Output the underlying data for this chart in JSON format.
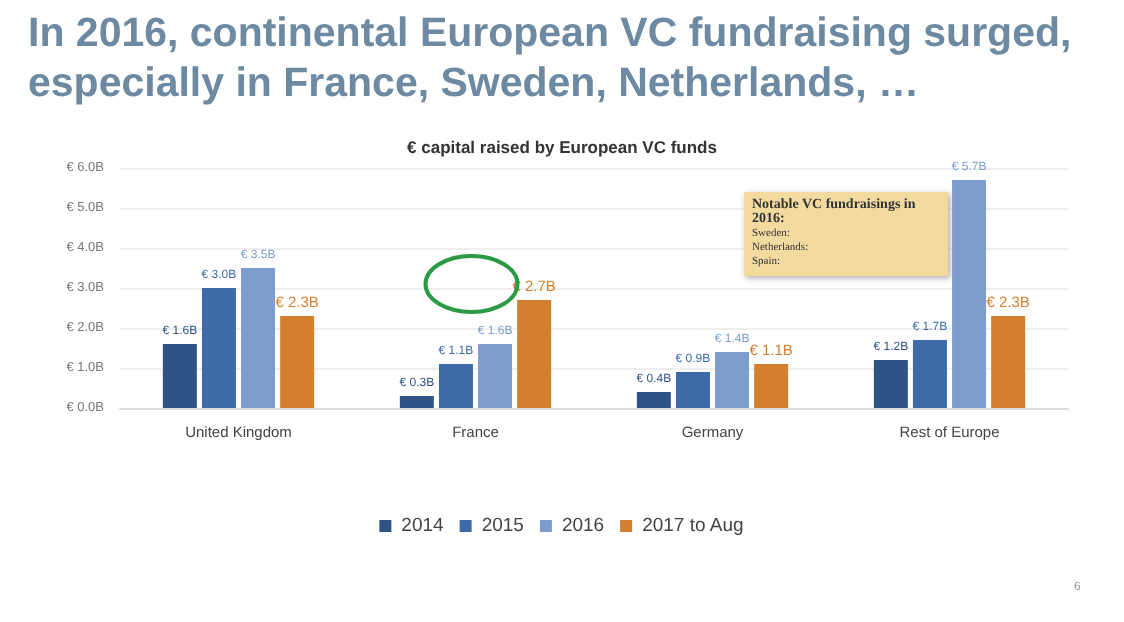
{
  "chart_data": {
    "type": "bar",
    "title": "In 2016, continental European VC fundraising surged, especially in France, Sweden, Netherlands, …",
    "subtitle": "€ capital raised by European VC funds",
    "categories": [
      "United Kingdom",
      "France",
      "Germany",
      "Rest of Europe"
    ],
    "series": [
      {
        "name": "2014",
        "color": "#2f5385",
        "values": [
          1.6,
          0.3,
          0.4,
          1.2
        ],
        "value_labels": [
          "€ 1.6B",
          "€ 0.3B",
          "€ 0.4B",
          "€ 1.2B"
        ]
      },
      {
        "name": "2015",
        "color": "#3d6aa8",
        "values": [
          3.0,
          1.1,
          0.9,
          1.7
        ],
        "value_labels": [
          "€ 3.0B",
          "€ 1.1B",
          "€ 0.9B",
          "€ 1.7B"
        ]
      },
      {
        "name": "2016",
        "color": "#7e9dcf",
        "values": [
          3.5,
          1.6,
          1.4,
          5.7
        ],
        "value_labels": [
          "€ 3.5B",
          "€ 1.6B",
          "€ 1.4B",
          "€ 5.7B"
        ]
      },
      {
        "name": "2017 to Aug",
        "color": "#d47f2e",
        "values": [
          2.3,
          2.7,
          1.1,
          2.3
        ],
        "value_labels": [
          "€ 2.3B",
          "€ 2.7B",
          "€ 1.1B",
          "€ 2.3B"
        ]
      }
    ],
    "ylim": [
      0,
      6
    ],
    "yticks": [
      {
        "value": 0,
        "label": "€ 0.0B"
      },
      {
        "value": 1,
        "label": "€ 1.0B"
      },
      {
        "value": 2,
        "label": "€ 2.0B"
      },
      {
        "value": 3,
        "label": "€ 3.0B"
      },
      {
        "value": 4,
        "label": "€ 4.0B"
      },
      {
        "value": 5,
        "label": "€ 5.0B"
      },
      {
        "value": 6,
        "label": "€ 6.0B"
      }
    ],
    "grid": "y",
    "legend": "bottom",
    "annotations": [
      "Notable VC fundraisings in 2016:",
      "Sweden:",
      "Netherlands:",
      "Spain:",
      "6"
    ]
  }
}
